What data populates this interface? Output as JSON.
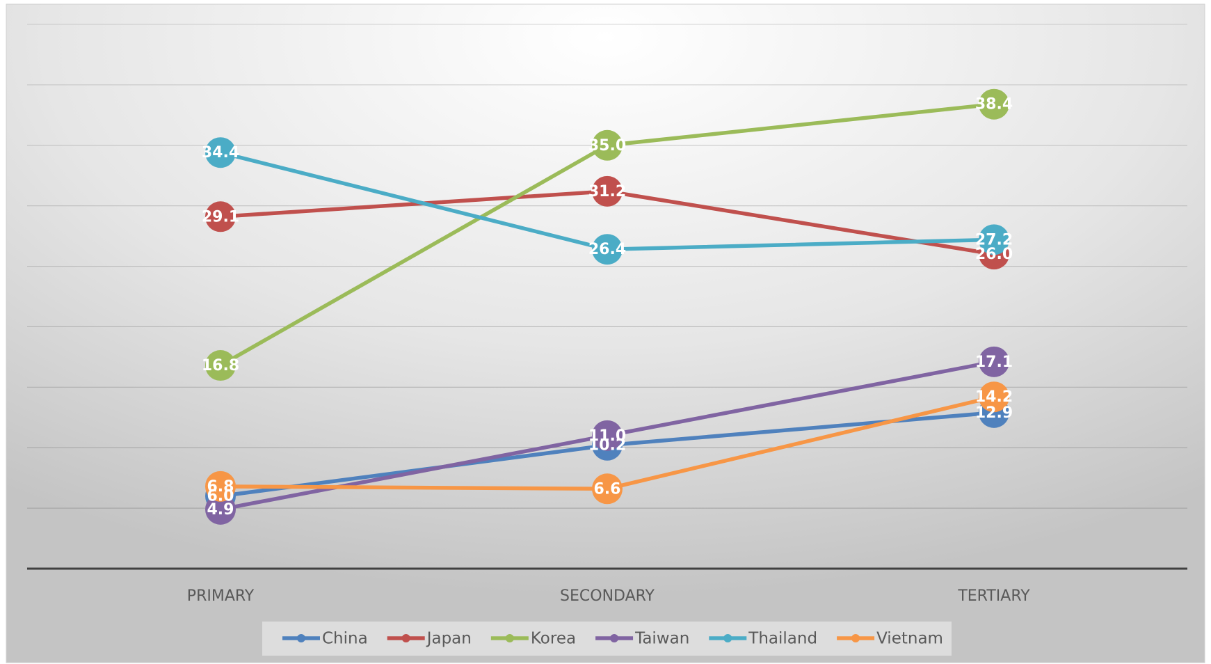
{
  "chart_data": {
    "type": "line",
    "categories": [
      "PRIMARY",
      "SECONDARY",
      "TERTIARY"
    ],
    "series": [
      {
        "name": "China",
        "color": "#4f81bd",
        "values": [
          6.0,
          10.2,
          12.9
        ],
        "value_labels": [
          "6.0",
          "10.2",
          "12.9"
        ]
      },
      {
        "name": "Japan",
        "color": "#c0504d",
        "values": [
          29.1,
          31.2,
          26.0
        ],
        "value_labels": [
          "29.1",
          "31.2",
          "26.0"
        ]
      },
      {
        "name": "Korea",
        "color": "#9bbb59",
        "values": [
          16.8,
          35.0,
          38.4
        ],
        "value_labels": [
          "16.8",
          "35.0",
          "38.4"
        ]
      },
      {
        "name": "Taiwan",
        "color": "#8064a2",
        "values": [
          4.9,
          11.0,
          17.1
        ],
        "value_labels": [
          "4.9",
          "11.0",
          "17.1"
        ]
      },
      {
        "name": "Thailand",
        "color": "#4bacc6",
        "values": [
          34.4,
          26.4,
          27.2
        ],
        "value_labels": [
          "34.4",
          "26.4",
          "27.2"
        ]
      },
      {
        "name": "Vietnam",
        "color": "#f79646",
        "values": [
          6.8,
          6.6,
          14.2
        ],
        "value_labels": [
          "6.8",
          "6.6",
          "14.2"
        ]
      }
    ],
    "ylim": [
      0,
      45
    ],
    "yticks": [
      0,
      5,
      10,
      15,
      20,
      25,
      30,
      35,
      40,
      45
    ],
    "show_y_tick_labels": false,
    "grid": true,
    "legend": "bottom"
  }
}
